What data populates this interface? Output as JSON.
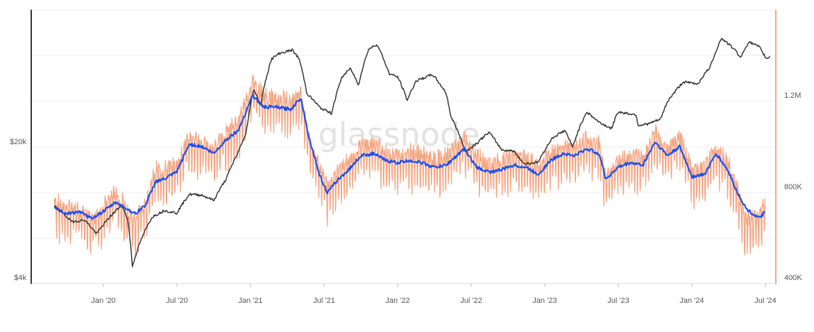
{
  "watermark": "glassnode",
  "chart_data": {
    "type": "line",
    "title": "",
    "grid": true,
    "x_ticks": [
      "Jan '20",
      "Jul '20",
      "Jan '21",
      "Jul '21",
      "Jan '22",
      "Jul '22",
      "Jan '23",
      "Jul '23",
      "Jan '24",
      "Jul '24"
    ],
    "x_range": [
      "2019-09-01",
      "2024-07-01"
    ],
    "y_left": {
      "scale": "log",
      "ticks": [
        "$4k",
        "$20k"
      ],
      "tick_values": [
        4000,
        20000
      ],
      "range": [
        4000,
        80000
      ]
    },
    "y_right": {
      "scale": "linear",
      "ticks": [
        "400K",
        "800K",
        "1.2M"
      ],
      "tick_values": [
        400000,
        800000,
        1200000
      ],
      "range": [
        400000,
        1200000
      ]
    },
    "colors": {
      "price": "#333333",
      "daily": "#f4a582",
      "avg": "#1a4ff0",
      "right_axis": "#f4a582",
      "left_axis": "#333333"
    },
    "series": [
      {
        "key": "price",
        "axis": "left",
        "points": [
          [
            "2019-09-01",
            10000
          ],
          [
            "2019-10-15",
            8300
          ],
          [
            "2019-11-15",
            8500
          ],
          [
            "2019-12-15",
            7200
          ],
          [
            "2020-01-15",
            8700
          ],
          [
            "2020-02-15",
            10100
          ],
          [
            "2020-03-01",
            8600
          ],
          [
            "2020-03-13",
            4900
          ],
          [
            "2020-04-01",
            6500
          ],
          [
            "2020-05-01",
            8800
          ],
          [
            "2020-06-01",
            9500
          ],
          [
            "2020-07-01",
            9200
          ],
          [
            "2020-08-01",
            11500
          ],
          [
            "2020-09-01",
            11400
          ],
          [
            "2020-10-01",
            10700
          ],
          [
            "2020-11-01",
            13800
          ],
          [
            "2020-12-01",
            19000
          ],
          [
            "2020-12-20",
            23500
          ],
          [
            "2021-01-08",
            40000
          ],
          [
            "2021-01-25",
            33000
          ],
          [
            "2021-02-21",
            57000
          ],
          [
            "2021-03-13",
            61000
          ],
          [
            "2021-04-14",
            63500
          ],
          [
            "2021-05-01",
            57000
          ],
          [
            "2021-05-20",
            38000
          ],
          [
            "2021-06-22",
            32000
          ],
          [
            "2021-07-20",
            30000
          ],
          [
            "2021-08-15",
            46000
          ],
          [
            "2021-09-05",
            51000
          ],
          [
            "2021-09-25",
            42000
          ],
          [
            "2021-10-20",
            64000
          ],
          [
            "2021-11-10",
            68000
          ],
          [
            "2021-12-10",
            48000
          ],
          [
            "2022-01-01",
            46000
          ],
          [
            "2022-01-24",
            35000
          ],
          [
            "2022-02-15",
            44000
          ],
          [
            "2022-03-28",
            47500
          ],
          [
            "2022-05-01",
            38000
          ],
          [
            "2022-05-12",
            29000
          ],
          [
            "2022-06-18",
            19000
          ],
          [
            "2022-07-15",
            21000
          ],
          [
            "2022-08-15",
            24000
          ],
          [
            "2022-09-15",
            19500
          ],
          [
            "2022-10-15",
            19200
          ],
          [
            "2022-11-10",
            16500
          ],
          [
            "2022-12-15",
            16800
          ],
          [
            "2023-01-20",
            22500
          ],
          [
            "2023-02-20",
            24500
          ],
          [
            "2023-03-10",
            20000
          ],
          [
            "2023-04-14",
            30500
          ],
          [
            "2023-05-15",
            27000
          ],
          [
            "2023-06-15",
            25000
          ],
          [
            "2023-07-01",
            30500
          ],
          [
            "2023-08-15",
            29500
          ],
          [
            "2023-08-20",
            26000
          ],
          [
            "2023-09-15",
            26500
          ],
          [
            "2023-10-15",
            28000
          ],
          [
            "2023-11-01",
            34500
          ],
          [
            "2023-12-10",
            43500
          ],
          [
            "2024-01-15",
            42500
          ],
          [
            "2024-02-15",
            52000
          ],
          [
            "2024-03-14",
            73000
          ],
          [
            "2024-04-15",
            64000
          ],
          [
            "2024-05-01",
            58000
          ],
          [
            "2024-05-20",
            70000
          ],
          [
            "2024-06-15",
            66000
          ],
          [
            "2024-06-25",
            61000
          ],
          [
            "2024-07-05",
            57000
          ],
          [
            "2024-07-12",
            59000
          ]
        ]
      },
      {
        "key": "daily",
        "axis": "right",
        "points": [
          [
            "2019-09-01",
            730000
          ],
          [
            "2019-10-01",
            690000
          ],
          [
            "2019-11-01",
            700000
          ],
          [
            "2019-12-01",
            640000
          ],
          [
            "2020-01-01",
            700000
          ],
          [
            "2020-02-01",
            770000
          ],
          [
            "2020-03-01",
            680000
          ],
          [
            "2020-03-20",
            650000
          ],
          [
            "2020-04-15",
            720000
          ],
          [
            "2020-05-10",
            860000
          ],
          [
            "2020-06-01",
            860000
          ],
          [
            "2020-07-01",
            890000
          ],
          [
            "2020-08-01",
            1000000
          ],
          [
            "2020-09-01",
            980000
          ],
          [
            "2020-10-01",
            950000
          ],
          [
            "2020-11-01",
            1020000
          ],
          [
            "2020-12-01",
            1070000
          ],
          [
            "2021-01-05",
            1250000
          ],
          [
            "2021-02-01",
            1180000
          ],
          [
            "2021-03-01",
            1170000
          ],
          [
            "2021-04-10",
            1160000
          ],
          [
            "2021-05-05",
            1200000
          ],
          [
            "2021-05-25",
            1000000
          ],
          [
            "2021-06-20",
            880000
          ],
          [
            "2021-07-10",
            800000
          ],
          [
            "2021-08-01",
            850000
          ],
          [
            "2021-09-01",
            900000
          ],
          [
            "2021-10-01",
            960000
          ],
          [
            "2021-11-01",
            980000
          ],
          [
            "2021-12-01",
            930000
          ],
          [
            "2022-01-01",
            920000
          ],
          [
            "2022-02-01",
            940000
          ],
          [
            "2022-03-01",
            930000
          ],
          [
            "2022-04-01",
            900000
          ],
          [
            "2022-05-01",
            920000
          ],
          [
            "2022-06-15",
            990000
          ],
          [
            "2022-07-15",
            920000
          ],
          [
            "2022-08-15",
            880000
          ],
          [
            "2022-09-15",
            900000
          ],
          [
            "2022-10-15",
            920000
          ],
          [
            "2022-11-15",
            910000
          ],
          [
            "2022-12-15",
            870000
          ],
          [
            "2023-01-15",
            930000
          ],
          [
            "2023-02-15",
            970000
          ],
          [
            "2023-03-15",
            950000
          ],
          [
            "2023-04-15",
            990000
          ],
          [
            "2023-05-15",
            970000
          ],
          [
            "2023-06-01",
            830000
          ],
          [
            "2023-07-01",
            900000
          ],
          [
            "2023-08-01",
            930000
          ],
          [
            "2023-09-01",
            910000
          ],
          [
            "2023-10-01",
            1020000
          ],
          [
            "2023-11-01",
            950000
          ],
          [
            "2023-12-01",
            1010000
          ],
          [
            "2024-01-01",
            850000
          ],
          [
            "2024-02-01",
            870000
          ],
          [
            "2024-03-01",
            960000
          ],
          [
            "2024-04-01",
            880000
          ],
          [
            "2024-04-20",
            790000
          ],
          [
            "2024-05-15",
            650000
          ],
          [
            "2024-06-15",
            660000
          ],
          [
            "2024-07-01",
            720000
          ]
        ]
      },
      {
        "key": "avg",
        "axis": "right",
        "points": [
          [
            "2019-09-01",
            730000
          ],
          [
            "2019-10-01",
            700000
          ],
          [
            "2019-11-01",
            710000
          ],
          [
            "2019-12-01",
            680000
          ],
          [
            "2020-01-01",
            710000
          ],
          [
            "2020-02-01",
            750000
          ],
          [
            "2020-03-01",
            720000
          ],
          [
            "2020-03-20",
            700000
          ],
          [
            "2020-04-15",
            740000
          ],
          [
            "2020-05-10",
            840000
          ],
          [
            "2020-06-01",
            850000
          ],
          [
            "2020-07-01",
            880000
          ],
          [
            "2020-08-01",
            1000000
          ],
          [
            "2020-09-01",
            990000
          ],
          [
            "2020-10-01",
            960000
          ],
          [
            "2020-11-01",
            1020000
          ],
          [
            "2020-12-01",
            1060000
          ],
          [
            "2021-01-05",
            1210000
          ],
          [
            "2021-02-01",
            1160000
          ],
          [
            "2021-03-01",
            1160000
          ],
          [
            "2021-04-10",
            1150000
          ],
          [
            "2021-05-05",
            1200000
          ],
          [
            "2021-05-25",
            1030000
          ],
          [
            "2021-06-20",
            870000
          ],
          [
            "2021-07-10",
            790000
          ],
          [
            "2021-08-01",
            840000
          ],
          [
            "2021-09-01",
            890000
          ],
          [
            "2021-10-01",
            950000
          ],
          [
            "2021-11-01",
            960000
          ],
          [
            "2021-12-01",
            930000
          ],
          [
            "2022-01-01",
            920000
          ],
          [
            "2022-02-01",
            930000
          ],
          [
            "2022-03-01",
            920000
          ],
          [
            "2022-04-01",
            900000
          ],
          [
            "2022-05-01",
            910000
          ],
          [
            "2022-06-15",
            980000
          ],
          [
            "2022-07-15",
            900000
          ],
          [
            "2022-08-15",
            880000
          ],
          [
            "2022-09-15",
            890000
          ],
          [
            "2022-10-15",
            910000
          ],
          [
            "2022-11-15",
            900000
          ],
          [
            "2022-12-15",
            870000
          ],
          [
            "2023-01-15",
            930000
          ],
          [
            "2023-02-15",
            960000
          ],
          [
            "2023-03-15",
            950000
          ],
          [
            "2023-04-15",
            980000
          ],
          [
            "2023-05-15",
            960000
          ],
          [
            "2023-06-01",
            850000
          ],
          [
            "2023-07-01",
            900000
          ],
          [
            "2023-08-01",
            920000
          ],
          [
            "2023-09-01",
            910000
          ],
          [
            "2023-10-01",
            1010000
          ],
          [
            "2023-11-01",
            950000
          ],
          [
            "2023-12-01",
            990000
          ],
          [
            "2024-01-01",
            860000
          ],
          [
            "2024-02-01",
            870000
          ],
          [
            "2024-03-01",
            960000
          ],
          [
            "2024-04-01",
            880000
          ],
          [
            "2024-04-20",
            800000
          ],
          [
            "2024-05-15",
            720000
          ],
          [
            "2024-06-15",
            680000
          ],
          [
            "2024-07-01",
            710000
          ]
        ]
      }
    ]
  }
}
